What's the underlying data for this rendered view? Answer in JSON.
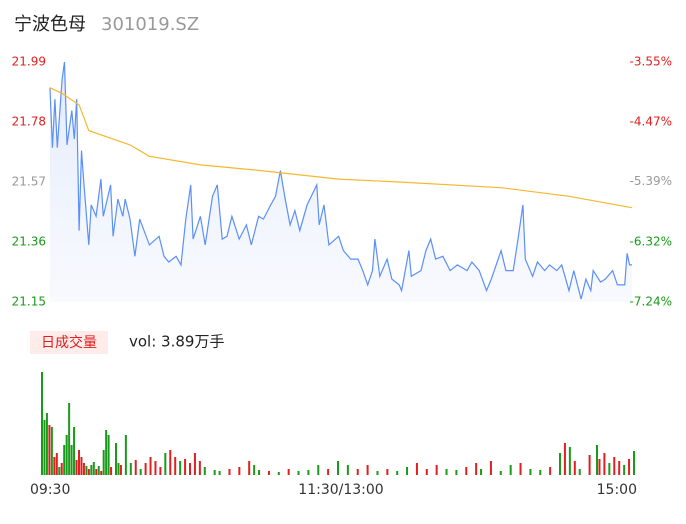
{
  "header": {
    "title": "宁波色母",
    "code": "301019.SZ"
  },
  "chart_data": [
    {
      "type": "line",
      "xlim": [
        0,
        240
      ],
      "xticks": [
        {
          "value": 0,
          "label": "09:30"
        },
        {
          "value": 120,
          "label": "11:30/13:00"
        },
        {
          "value": 240,
          "label": "15:00"
        }
      ],
      "ylim": [
        21.15,
        21.99
      ],
      "yticks": [
        21.15,
        21.36,
        21.57,
        21.78,
        21.99
      ],
      "ytick_colors": [
        "#1a9a1a",
        "#1a9a1a",
        "#999999",
        "#e02020",
        "#e02020"
      ],
      "y2lim": [
        -7.24,
        -3.55
      ],
      "y2ticks": [
        {
          "value": -7.24,
          "label": "-7.24%"
        },
        {
          "value": -6.32,
          "label": "-6.32%"
        },
        {
          "value": -5.39,
          "label": "-5.39%"
        },
        {
          "value": -4.47,
          "label": "-4.47%"
        },
        {
          "value": -3.55,
          "label": "-3.55%"
        }
      ],
      "series": [
        {
          "color": "#5b8ff9",
          "area": true,
          "x": [
            0,
            1,
            2,
            3,
            5,
            6,
            7,
            9,
            10,
            11,
            12,
            13,
            14,
            16,
            17,
            19,
            21,
            22,
            25,
            26,
            28,
            30,
            31,
            33,
            35,
            37,
            41,
            45,
            47,
            49,
            52,
            54,
            56,
            58,
            59,
            62,
            64,
            67,
            69,
            71,
            73,
            75,
            78,
            81,
            83,
            86,
            88,
            91,
            93,
            95,
            97,
            99,
            101,
            103,
            106,
            110,
            111,
            113,
            115,
            119,
            121,
            124,
            127,
            129,
            131,
            133,
            134,
            136,
            139,
            141,
            144,
            145,
            148,
            149,
            153,
            155,
            157,
            159,
            162,
            165,
            168,
            172,
            174,
            177,
            180,
            182,
            186,
            188,
            191,
            193,
            195,
            196,
            199,
            201,
            204,
            206,
            209,
            211,
            214,
            216,
            219,
            221,
            223,
            224,
            227,
            229,
            232,
            234,
            237,
            238,
            239,
            240
          ],
          "values": [
            21.9,
            21.69,
            21.86,
            21.69,
            21.93,
            21.99,
            21.7,
            21.82,
            21.72,
            21.86,
            21.4,
            21.68,
            21.56,
            21.35,
            21.49,
            21.45,
            21.58,
            21.45,
            21.56,
            21.38,
            21.51,
            21.45,
            21.51,
            21.44,
            21.31,
            21.44,
            21.35,
            21.38,
            21.31,
            21.29,
            21.31,
            21.28,
            21.44,
            21.56,
            21.37,
            21.45,
            21.35,
            21.52,
            21.56,
            21.37,
            21.38,
            21.45,
            21.37,
            21.42,
            21.35,
            21.45,
            21.44,
            21.49,
            21.52,
            21.61,
            21.51,
            21.42,
            21.47,
            21.4,
            21.49,
            21.56,
            21.42,
            21.49,
            21.35,
            21.38,
            21.33,
            21.3,
            21.3,
            21.26,
            21.21,
            21.26,
            21.37,
            21.24,
            21.3,
            21.23,
            21.21,
            21.19,
            21.33,
            21.24,
            21.26,
            21.33,
            21.37,
            21.3,
            21.31,
            21.26,
            21.28,
            21.26,
            21.29,
            21.26,
            21.19,
            21.23,
            21.33,
            21.26,
            21.26,
            21.37,
            21.49,
            21.3,
            21.24,
            21.29,
            21.26,
            21.28,
            21.26,
            21.28,
            21.19,
            21.26,
            21.16,
            21.23,
            21.19,
            21.26,
            21.22,
            21.23,
            21.26,
            21.21,
            21.21,
            21.32,
            21.28,
            21.28
          ]
        },
        {
          "color": "#f5b82e",
          "x": [
            0,
            5,
            12,
            16,
            33,
            41,
            62,
            87,
            119,
            144,
            186,
            214,
            240
          ],
          "values": [
            21.9,
            21.88,
            21.84,
            21.75,
            21.7,
            21.66,
            21.63,
            21.61,
            21.58,
            21.57,
            21.55,
            21.52,
            21.48
          ]
        }
      ]
    },
    {
      "type": "bar",
      "label": "日成交量",
      "volume_text": "vol: 3.89万手",
      "xlim": [
        0,
        240
      ],
      "ylim": [
        0,
        105
      ],
      "series": [
        {
          "color": "#e02020",
          "x": [
            3,
            5,
            6,
            8,
            14,
            15,
            16,
            17,
            19,
            22,
            24,
            28,
            32,
            38,
            42,
            44,
            46,
            48,
            52,
            54,
            58,
            60,
            62,
            64,
            76,
            80,
            84,
            92,
            100,
            116,
            128,
            132,
            140,
            152,
            156,
            160,
            172,
            176,
            182,
            194,
            206,
            212,
            216,
            222,
            226,
            228,
            232,
            234,
            238
          ],
          "values": [
            50,
            18,
            22,
            12,
            15,
            25,
            18,
            12,
            6,
            6,
            4,
            8,
            10,
            15,
            12,
            18,
            14,
            8,
            25,
            18,
            16,
            12,
            22,
            14,
            6,
            8,
            14,
            4,
            6,
            6,
            6,
            10,
            6,
            12,
            6,
            10,
            8,
            12,
            14,
            12,
            8,
            32,
            14,
            20,
            16,
            22,
            18,
            14,
            16
          ]
        },
        {
          "color": "#1a9a1a",
          "x": [
            0,
            1,
            2,
            4,
            7,
            9,
            10,
            11,
            12,
            13,
            18,
            20,
            21,
            23,
            25,
            26,
            27,
            30,
            31,
            34,
            36,
            40,
            50,
            56,
            66,
            70,
            72,
            86,
            88,
            96,
            104,
            108,
            112,
            120,
            124,
            136,
            144,
            148,
            164,
            168,
            178,
            186,
            190,
            198,
            202,
            210,
            214,
            218,
            225,
            230,
            236,
            240
          ],
          "values": [
            103,
            55,
            62,
            48,
            8,
            30,
            40,
            72,
            30,
            48,
            9,
            10,
            13,
            9,
            25,
            45,
            40,
            32,
            12,
            40,
            12,
            6,
            22,
            14,
            8,
            5,
            4,
            10,
            5,
            3,
            4,
            5,
            10,
            14,
            10,
            4,
            4,
            8,
            6,
            5,
            6,
            4,
            10,
            6,
            5,
            22,
            28,
            6,
            30,
            12,
            10,
            24
          ]
        }
      ]
    }
  ]
}
